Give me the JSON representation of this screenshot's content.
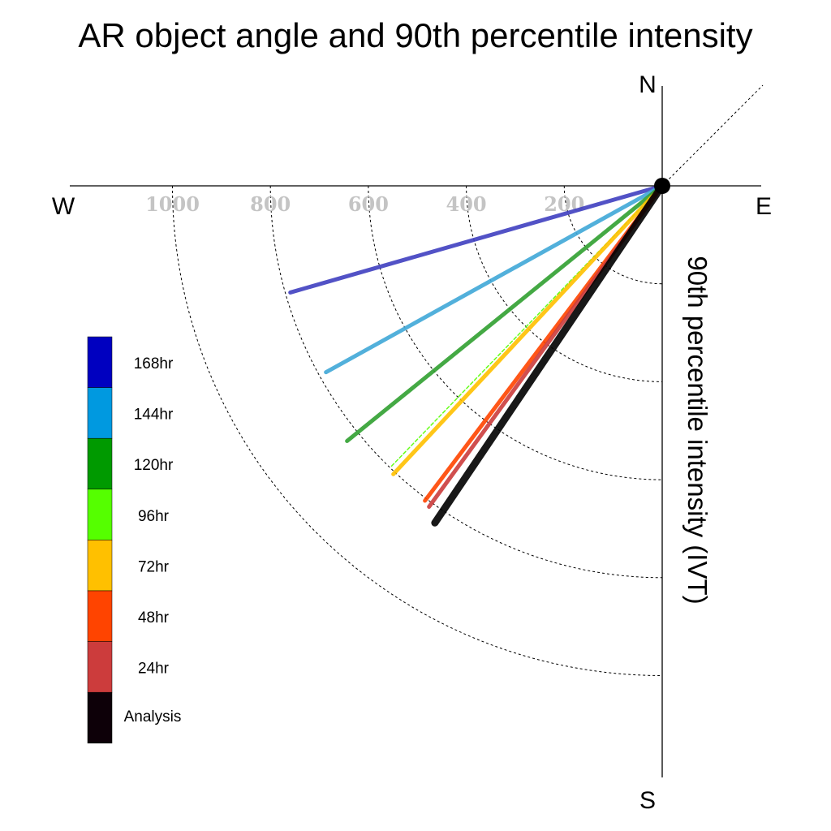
{
  "chart_data": {
    "type": "polar-vector",
    "title": "AR object angle and 90th percentile intensity",
    "radial_label": "90th percentile intensity (IVT)",
    "compass": {
      "north": "N",
      "south": "S",
      "east": "E",
      "west": "W"
    },
    "radial_ticks": [
      200,
      400,
      600,
      800,
      1000
    ],
    "radial_tick_labels": [
      "200",
      "400",
      "600",
      "800",
      "1000"
    ],
    "grid": true,
    "legend_position": "left",
    "series": [
      {
        "name": "168hr",
        "color": "#0000c0",
        "line_color": "#4040c0",
        "angle_deg": 254,
        "intensity": 790
      },
      {
        "name": "144hr",
        "color": "#0099e0",
        "line_color": "#40a8d8",
        "angle_deg": 241,
        "intensity": 785
      },
      {
        "name": "120hr",
        "color": "#009a00",
        "line_color": "#30a030",
        "angle_deg": 231,
        "intensity": 828
      },
      {
        "name": "96hr",
        "color": "#55ff00",
        "line_color": "#55ff00",
        "angle_deg": 224,
        "intensity": 800
      },
      {
        "name": "72hr",
        "color": "#ffc000",
        "line_color": "#ffc000",
        "angle_deg": 223,
        "intensity": 805
      },
      {
        "name": "48hr",
        "color": "#ff4400",
        "line_color": "#ff4400",
        "angle_deg": 217,
        "intensity": 805
      },
      {
        "name": "24hr",
        "color": "#cc3c3c",
        "line_color": "#cc3c3c",
        "angle_deg": 216,
        "intensity": 810
      },
      {
        "name": "Analysis",
        "color": "#0d0008",
        "line_color": "#000000",
        "angle_deg": 214,
        "intensity": 830
      }
    ]
  }
}
